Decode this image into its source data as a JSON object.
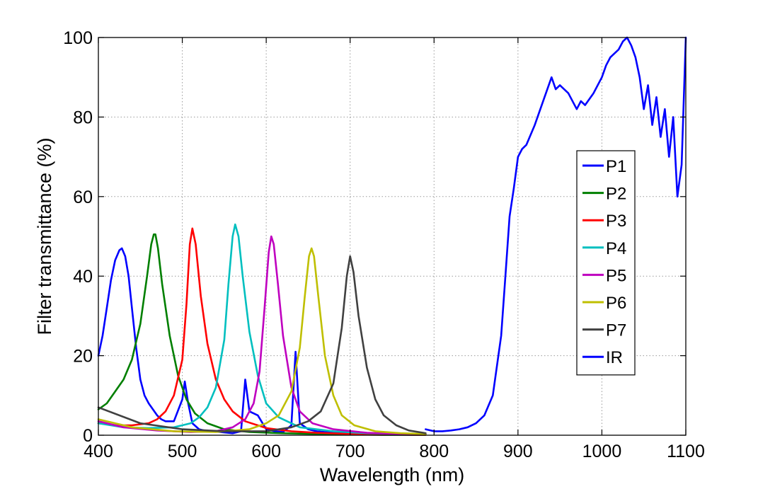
{
  "chart_data": {
    "type": "line",
    "title": "",
    "xlabel": "Wavelength (nm)",
    "ylabel": "Filter transmittance (%)",
    "xlim": [
      400,
      1100
    ],
    "ylim": [
      0,
      100
    ],
    "xticks": [
      400,
      500,
      600,
      700,
      800,
      900,
      1000,
      1100
    ],
    "yticks": [
      0,
      20,
      40,
      60,
      80,
      100
    ],
    "grid": true,
    "legend": "right",
    "series": [
      {
        "name": "P1",
        "color": "#0000ff",
        "x": [
          400,
          405,
          410,
          415,
          420,
          425,
          428,
          432,
          436,
          440,
          445,
          450,
          455,
          460,
          465,
          470,
          475,
          480,
          490,
          500,
          503,
          507,
          512,
          520,
          530,
          545,
          560,
          570,
          575,
          580,
          590,
          600,
          610,
          620,
          630,
          635,
          640,
          650,
          660,
          680,
          700,
          730,
          765,
          790
        ],
        "y": [
          20,
          25,
          32,
          39,
          44,
          46.5,
          47,
          45,
          40,
          32,
          22,
          14,
          10,
          8,
          6.5,
          5,
          4,
          3.5,
          3.5,
          9,
          13.5,
          8,
          3,
          1.5,
          1,
          0.8,
          0.5,
          1,
          14,
          6,
          5,
          1.5,
          1,
          0.8,
          2.5,
          21,
          3,
          1.5,
          1,
          0.6,
          0.5,
          0.4,
          0.3,
          0.2
        ]
      },
      {
        "name": "P2",
        "color": "#007f00",
        "x": [
          400,
          410,
          420,
          430,
          440,
          450,
          458,
          463,
          466,
          468,
          471,
          476,
          485,
          495,
          505,
          515,
          530,
          550,
          580,
          620,
          660,
          700,
          740,
          780,
          790
        ],
        "y": [
          6.5,
          8,
          11,
          14,
          19,
          28,
          40,
          48,
          50.5,
          50.5,
          47,
          38,
          25,
          15,
          9,
          5.5,
          3,
          1.5,
          0.8,
          0.5,
          0.3,
          0.2,
          0.1,
          0.1,
          0.1
        ]
      },
      {
        "name": "P3",
        "color": "#ff0000",
        "x": [
          400,
          420,
          440,
          460,
          470,
          480,
          490,
          500,
          505,
          509,
          512,
          516,
          522,
          530,
          540,
          550,
          560,
          575,
          600,
          630,
          660,
          700,
          740,
          780,
          790
        ],
        "y": [
          3,
          2.5,
          2.5,
          3,
          4,
          6,
          10,
          19,
          33,
          48,
          52,
          48,
          35,
          23,
          14,
          9,
          6,
          3.5,
          1.8,
          1,
          0.6,
          0.3,
          0.2,
          0.1,
          0.1
        ]
      },
      {
        "name": "P4",
        "color": "#00bfbf",
        "x": [
          400,
          430,
          460,
          490,
          510,
          520,
          530,
          540,
          550,
          555,
          560,
          563,
          567,
          572,
          580,
          590,
          600,
          615,
          640,
          680,
          720,
          760,
          790
        ],
        "y": [
          3,
          2,
          1.8,
          2,
          3,
          4.5,
          7,
          12,
          24,
          38,
          50,
          53,
          50,
          40,
          26,
          15,
          8,
          4.5,
          2,
          1,
          0.5,
          0.3,
          0.2
        ]
      },
      {
        "name": "P5",
        "color": "#bf00bf",
        "x": [
          400,
          430,
          470,
          510,
          540,
          560,
          575,
          585,
          592,
          598,
          603,
          606,
          609,
          614,
          620,
          630,
          640,
          655,
          680,
          720,
          760,
          790
        ],
        "y": [
          3.5,
          2,
          1.2,
          0.8,
          1,
          2,
          4,
          8,
          16,
          32,
          46,
          50,
          48,
          38,
          25,
          12,
          6,
          3,
          1.5,
          0.6,
          0.3,
          0.2
        ]
      },
      {
        "name": "P6",
        "color": "#bfbf00",
        "x": [
          400,
          440,
          490,
          540,
          580,
          600,
          615,
          630,
          640,
          646,
          651,
          654,
          657,
          662,
          670,
          680,
          690,
          705,
          730,
          760,
          790
        ],
        "y": [
          4,
          2,
          1,
          0.8,
          1.5,
          3,
          5,
          11,
          22,
          35,
          45,
          47,
          45,
          35,
          20,
          10,
          5,
          2.5,
          1,
          0.5,
          0.3
        ]
      },
      {
        "name": "P7",
        "color": "#404040",
        "x": [
          400,
          450,
          500,
          550,
          600,
          630,
          650,
          665,
          680,
          690,
          696,
          700,
          704,
          710,
          720,
          730,
          740,
          755,
          770,
          790
        ],
        "y": [
          7,
          3,
          1.5,
          1,
          1,
          2,
          3.5,
          6,
          13,
          27,
          40,
          45,
          41,
          30,
          17,
          9,
          5,
          2.5,
          1.2,
          0.5
        ]
      },
      {
        "name": "IR",
        "color": "#0000ff",
        "x": [
          790,
          800,
          810,
          820,
          830,
          840,
          850,
          860,
          870,
          880,
          885,
          890,
          895,
          900,
          905,
          910,
          920,
          930,
          940,
          945,
          950,
          960,
          970,
          975,
          980,
          990,
          1000,
          1005,
          1010,
          1020,
          1025,
          1030,
          1035,
          1040,
          1045,
          1050,
          1055,
          1060,
          1065,
          1070,
          1075,
          1080,
          1085,
          1090,
          1095,
          1100
        ],
        "y": [
          1.5,
          1,
          1,
          1.2,
          1.5,
          2,
          3,
          5,
          10,
          25,
          40,
          55,
          62,
          70,
          72,
          73,
          78,
          84,
          90,
          87,
          88,
          86,
          82,
          84,
          83,
          86,
          90,
          93,
          95,
          97,
          99,
          100,
          98,
          95,
          90,
          82,
          88,
          78,
          85,
          75,
          82,
          70,
          80,
          60,
          68,
          100
        ]
      }
    ]
  }
}
